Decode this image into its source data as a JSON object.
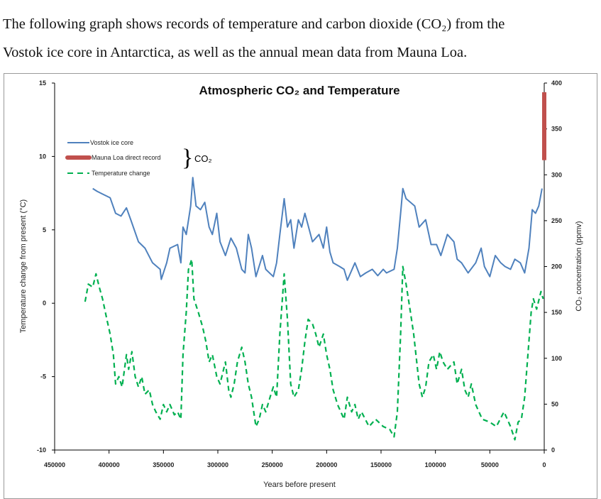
{
  "intro_text": [
    "The following graph shows records of temperature and carbon dioxide (CO₂) from the",
    "Vostok ice core in Antarctica, as well as the annual mean data from Mauna Loa."
  ],
  "chart_data": {
    "type": "line",
    "title": "Atmospheric CO₂ and Temperature",
    "xlabel": "Years before present",
    "ylabel_left": "Temperature change from present (°C)",
    "ylabel_right": "CO₂ concentration (ppmv)",
    "xlim": [
      450000,
      0
    ],
    "ylim_left": [
      -10,
      15
    ],
    "ylim_right": [
      0,
      400
    ],
    "x_ticks": [
      "450000",
      "400000",
      "350000",
      "300000",
      "250000",
      "200000",
      "150000",
      "100000",
      "50000",
      "0"
    ],
    "y_ticks_left": [
      "15",
      "10",
      "5",
      "0",
      "-5",
      "-10"
    ],
    "y_ticks_right": [
      "400",
      "350",
      "300",
      "250",
      "200",
      "150",
      "100",
      "50",
      "0"
    ],
    "grid": false,
    "legend_placement": "top-left",
    "legend_bracket_label": "CO₂",
    "series": [
      {
        "name": "Vostok ice core",
        "axis": "right",
        "color": "#4f81bd",
        "style": "solid",
        "x": [
          415000,
          411000,
          406000,
          399000,
          394000,
          389000,
          384000,
          380000,
          373000,
          367000,
          360000,
          353000,
          352000,
          347000,
          344000,
          337000,
          334000,
          332000,
          329000,
          325000,
          323000,
          320000,
          316000,
          312000,
          308000,
          305000,
          301000,
          298000,
          293000,
          288000,
          283000,
          278000,
          275000,
          272000,
          269000,
          265000,
          259000,
          256000,
          249000,
          246000,
          243000,
          239000,
          236000,
          233000,
          230000,
          226000,
          223000,
          220000,
          213000,
          207000,
          203000,
          200000,
          197000,
          194000,
          188000,
          184000,
          181000,
          174000,
          169000,
          164000,
          158000,
          153000,
          148000,
          145000,
          138000,
          135000,
          132000,
          130000,
          127000,
          123000,
          119000,
          115000,
          109000,
          104000,
          99000,
          95000,
          89000,
          83000,
          80000,
          76000,
          70000,
          63000,
          58000,
          55000,
          50000,
          45000,
          40000,
          36000,
          31000,
          27000,
          22000,
          18000,
          14000,
          11000,
          8000,
          5000,
          2000
        ],
        "y": [
          285,
          282,
          279,
          275,
          258,
          255,
          264,
          251,
          227,
          220,
          204,
          197,
          186,
          204,
          220,
          224,
          204,
          243,
          235,
          266,
          297,
          266,
          262,
          270,
          243,
          235,
          258,
          227,
          212,
          231,
          220,
          197,
          193,
          235,
          220,
          189,
          212,
          197,
          189,
          204,
          235,
          274,
          243,
          251,
          220,
          251,
          243,
          258,
          227,
          235,
          220,
          243,
          216,
          204,
          200,
          197,
          185,
          204,
          189,
          193,
          197,
          190,
          197,
          193,
          197,
          220,
          258,
          285,
          274,
          270,
          266,
          243,
          251,
          224,
          224,
          212,
          235,
          227,
          208,
          204,
          193,
          204,
          220,
          200,
          189,
          212,
          204,
          200,
          197,
          208,
          204,
          193,
          220,
          262,
          258,
          266,
          285
        ]
      },
      {
        "name": "Mauna Loa direct record",
        "axis": "right",
        "color": "#c0504d",
        "style": "thick",
        "x": [
          0,
          0
        ],
        "y": [
          316,
          390
        ]
      },
      {
        "name": "Temperature change",
        "axis": "left",
        "color": "#00b050",
        "style": "dashed",
        "x": [
          422000,
          419000,
          415000,
          412000,
          409000,
          406000,
          402000,
          399000,
          396000,
          394000,
          391000,
          388000,
          384000,
          382000,
          379000,
          376000,
          373000,
          370000,
          367000,
          363000,
          360000,
          357000,
          353000,
          350000,
          347000,
          344000,
          340000,
          337000,
          334000,
          332000,
          329000,
          327000,
          324000,
          322000,
          318000,
          314000,
          311000,
          308000,
          305000,
          301000,
          298000,
          293000,
          290000,
          288000,
          285000,
          282000,
          278000,
          275000,
          272000,
          269000,
          265000,
          262000,
          259000,
          256000,
          252000,
          249000,
          246000,
          243000,
          239000,
          236000,
          233000,
          230000,
          226000,
          223000,
          220000,
          217000,
          213000,
          210000,
          207000,
          203000,
          200000,
          197000,
          194000,
          190000,
          187000,
          184000,
          181000,
          177000,
          174000,
          171000,
          168000,
          161000,
          155000,
          148000,
          142000,
          138000,
          135000,
          132000,
          130000,
          127000,
          123000,
          120000,
          115000,
          112000,
          109000,
          106000,
          102000,
          99000,
          96000,
          93000,
          89000,
          83000,
          80000,
          76000,
          73000,
          70000,
          67000,
          63000,
          57000,
          50000,
          44000,
          37000,
          31000,
          27000,
          24000,
          21000,
          18000,
          15000,
          12000,
          10000,
          7000,
          3000,
          1000
        ],
        "y": [
          0.1,
          1.3,
          1.1,
          2.0,
          1.1,
          0.3,
          -1.1,
          -2.1,
          -3.5,
          -5.5,
          -5.0,
          -5.7,
          -3.5,
          -4.5,
          -3.3,
          -5.0,
          -5.7,
          -5.0,
          -6.2,
          -5.9,
          -6.9,
          -7.4,
          -7.9,
          -6.9,
          -7.4,
          -6.9,
          -7.6,
          -7.4,
          -7.9,
          -3.5,
          -0.6,
          2.3,
          3.0,
          0.3,
          -0.6,
          -1.6,
          -2.6,
          -4.0,
          -3.5,
          -5.0,
          -5.5,
          -4.0,
          -5.9,
          -6.4,
          -5.5,
          -4.0,
          -3.0,
          -4.0,
          -5.5,
          -6.4,
          -8.4,
          -7.9,
          -6.9,
          -7.4,
          -6.4,
          -5.7,
          -6.4,
          -2.1,
          2.0,
          -1.1,
          -5.5,
          -6.4,
          -5.9,
          -4.5,
          -2.6,
          -1.1,
          -1.4,
          -2.1,
          -3.0,
          -2.1,
          -3.5,
          -4.5,
          -5.9,
          -6.9,
          -7.4,
          -7.9,
          -6.4,
          -7.4,
          -6.9,
          -7.9,
          -7.4,
          -8.4,
          -7.9,
          -8.4,
          -8.6,
          -9.1,
          -7.4,
          -2.1,
          2.5,
          1.3,
          -0.6,
          -2.1,
          -5.5,
          -6.4,
          -5.7,
          -4.0,
          -3.5,
          -4.5,
          -3.3,
          -4.0,
          -4.5,
          -4.0,
          -5.5,
          -4.5,
          -5.9,
          -6.4,
          -5.5,
          -6.9,
          -7.9,
          -8.1,
          -8.4,
          -7.4,
          -8.4,
          -9.3,
          -8.1,
          -7.9,
          -6.4,
          -3.5,
          -0.6,
          0.3,
          -0.4,
          0.8,
          0.3
        ]
      }
    ]
  }
}
